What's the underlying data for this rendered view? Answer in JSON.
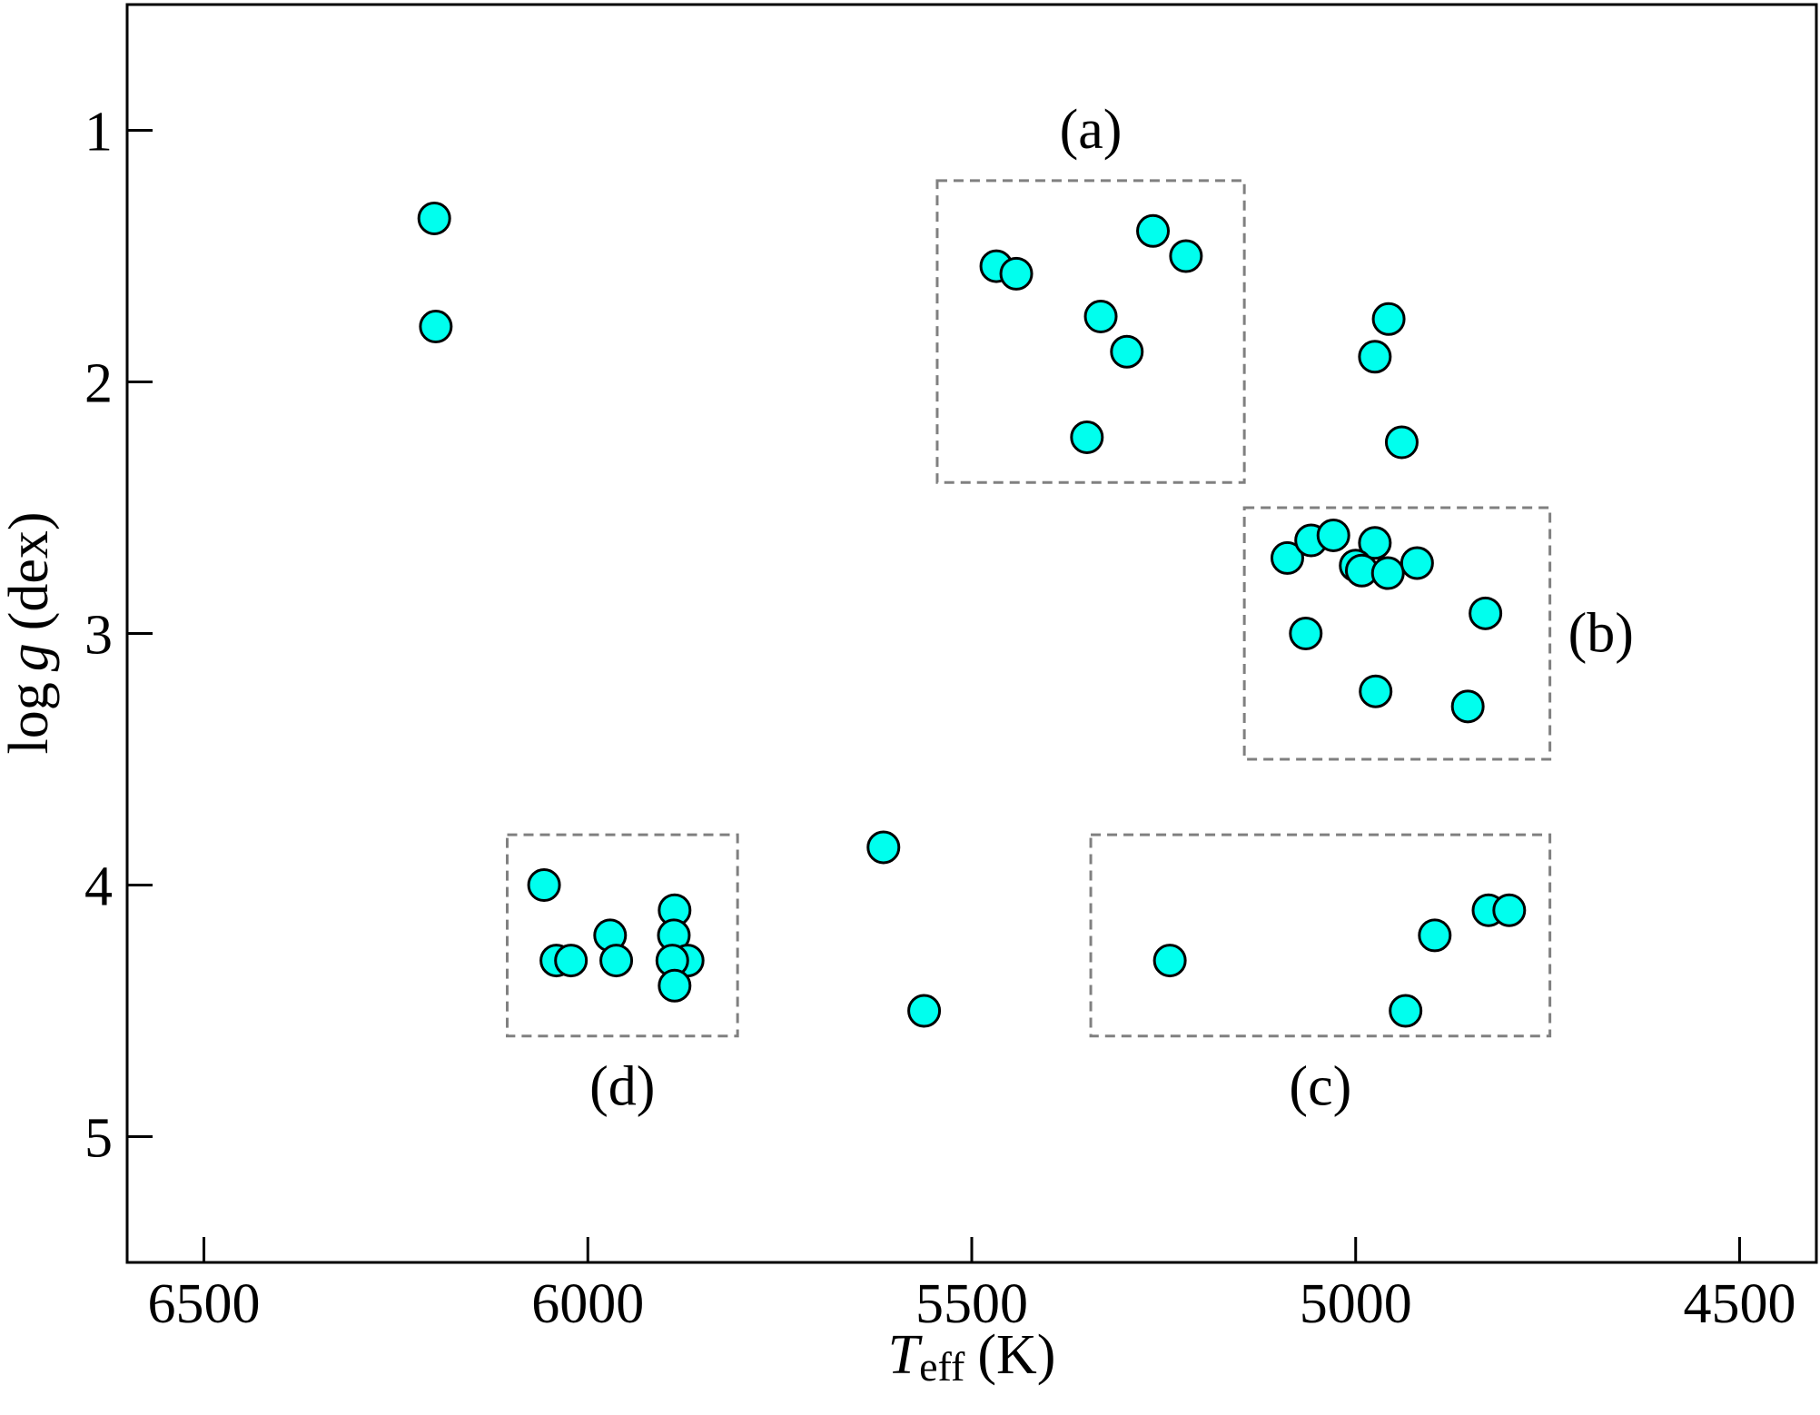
{
  "chart_data": {
    "type": "scatter",
    "xlabel_main": "T",
    "xlabel_sub": "eff",
    "xlabel_unit": "(K)",
    "ylabel_main": "log",
    "ylabel_var": "g",
    "ylabel_unit": "(dex)",
    "xlim": [
      6600,
      4400
    ],
    "ylim": [
      5.5,
      0.5
    ],
    "x_ticks": [
      6500,
      6000,
      5500,
      5000,
      4500
    ],
    "x_tick_labels": [
      "6500",
      "6000",
      "5500",
      "5000",
      "4500"
    ],
    "y_ticks": [
      1,
      2,
      3,
      4,
      5
    ],
    "y_tick_labels": [
      "1",
      "2",
      "3",
      "4",
      "5"
    ],
    "marker_color": "#00ffee",
    "marker_edge": "#000000",
    "box_color": "#808080",
    "points": [
      [
        6200,
        1.35
      ],
      [
        6198,
        1.78
      ],
      [
        5468,
        1.54
      ],
      [
        5442,
        1.57
      ],
      [
        5264,
        1.4
      ],
      [
        5221,
        1.5
      ],
      [
        5332,
        1.74
      ],
      [
        5298,
        1.88
      ],
      [
        5350,
        2.22
      ],
      [
        4957,
        1.75
      ],
      [
        4975,
        1.9
      ],
      [
        4940,
        2.24
      ],
      [
        5089,
        2.7
      ],
      [
        5058,
        2.63
      ],
      [
        5029,
        2.61
      ],
      [
        4975,
        2.64
      ],
      [
        5000,
        2.73
      ],
      [
        4992,
        2.75
      ],
      [
        4958,
        2.76
      ],
      [
        4920,
        2.72
      ],
      [
        5065,
        3.0
      ],
      [
        4974,
        3.23
      ],
      [
        4831,
        2.92
      ],
      [
        4854,
        3.29
      ],
      [
        6057,
        4.0
      ],
      [
        6041,
        4.3
      ],
      [
        6022,
        4.3
      ],
      [
        5971,
        4.2
      ],
      [
        5963,
        4.3
      ],
      [
        5887,
        4.1
      ],
      [
        5888,
        4.2
      ],
      [
        5870,
        4.3
      ],
      [
        5890,
        4.3
      ],
      [
        5887,
        4.4
      ],
      [
        5615,
        3.85
      ],
      [
        5562,
        4.5
      ],
      [
        5242,
        4.3
      ],
      [
        4897,
        4.2
      ],
      [
        4935,
        4.5
      ],
      [
        4827,
        4.1
      ],
      [
        4800,
        4.1
      ]
    ],
    "boxes": [
      {
        "label": "(a)",
        "x1": 5545,
        "x2": 5145,
        "y1": 1.2,
        "y2": 2.4,
        "label_pos": "top"
      },
      {
        "label": "(b)",
        "x1": 5145,
        "x2": 4747,
        "y1": 2.5,
        "y2": 3.5,
        "label_pos": "right"
      },
      {
        "label": "(c)",
        "x1": 5345,
        "x2": 4747,
        "y1": 3.8,
        "y2": 4.6,
        "label_pos": "bottom"
      },
      {
        "label": "(d)",
        "x1": 6105,
        "x2": 5805,
        "y1": 3.8,
        "y2": 4.6,
        "label_pos": "bottom"
      }
    ],
    "grid": false,
    "legend": "none"
  }
}
